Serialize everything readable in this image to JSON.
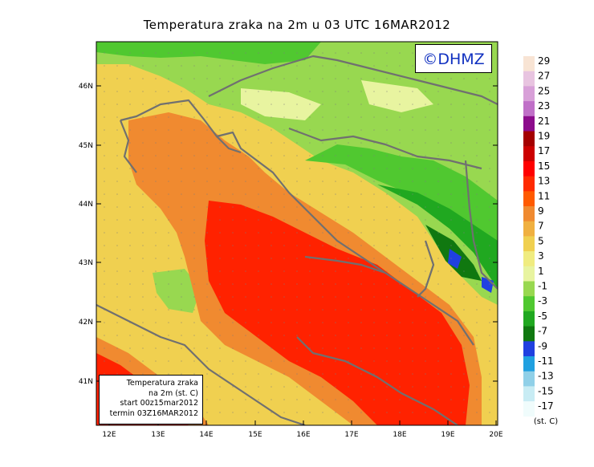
{
  "title": "Temperatura zraka na 2m u 03 UTC 16MAR2012",
  "logo": "©DHMZ",
  "infobox": {
    "line1": "Temperatura zraka",
    "line2": "na 2m (st. C)",
    "line3": "start 00z15mar2012",
    "line4": "termin 03Z16MAR2012"
  },
  "axes": {
    "lat_labels": [
      "46N",
      "45N",
      "44N",
      "43N",
      "42N",
      "41N"
    ],
    "lon_labels": [
      "12E",
      "13E",
      "14E",
      "15E",
      "16E",
      "17E",
      "18E",
      "19E",
      "20E"
    ]
  },
  "legend": {
    "unit": "(st. C)",
    "labels": [
      "29",
      "27",
      "25",
      "23",
      "21",
      "19",
      "17",
      "15",
      "13",
      "11",
      "9",
      "7",
      "5",
      "3",
      "1",
      "-1",
      "-3",
      "-5",
      "-7",
      "-9",
      "-11",
      "-13",
      "-15",
      "-17"
    ],
    "colors": [
      "#f8e4d4",
      "#e8c4e0",
      "#d8a0d8",
      "#c070c8",
      "#8c0c8c",
      "#a40000",
      "#cc0000",
      "#ff0000",
      "#ff2a00",
      "#ff5a00",
      "#f08a30",
      "#f0b040",
      "#f0d050",
      "#f0ec80",
      "#e8f4a0",
      "#98d850",
      "#50c830",
      "#20a820",
      "#107810",
      "#2040e0",
      "#20a0e0",
      "#90d0e8",
      "#c8ecf4",
      "#f0fcfc"
    ]
  },
  "colors": {
    "sea_warm": "#ff2200",
    "sea_mid": "#f08a30",
    "land_mild": "#f0d050",
    "land_cool": "#e8f4a0",
    "land_cold": "#50c830",
    "coast": "#707070"
  }
}
